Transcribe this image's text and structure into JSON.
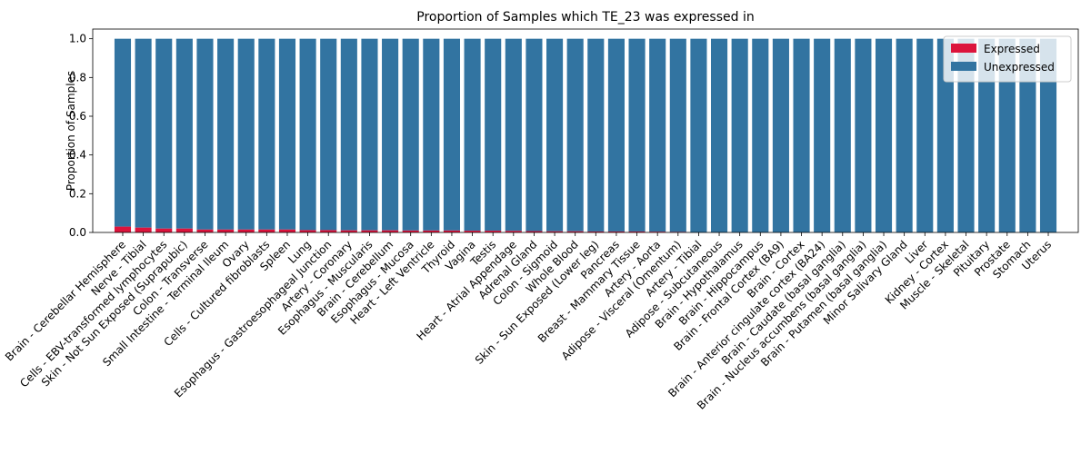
{
  "chart_data": {
    "type": "bar",
    "stacked": true,
    "title": "Proportion of Samples which TE_23 was expressed in",
    "xlabel": "",
    "ylabel": "Proportion of Samples",
    "ylim": [
      0,
      1.05
    ],
    "yticks": [
      "0.0",
      "0.2",
      "0.4",
      "0.6",
      "0.8",
      "1.0"
    ],
    "grid": false,
    "legend_position": "top-right",
    "categories": [
      "Brain - Cerebellar Hemisphere",
      "Nerve - Tibial",
      "Cells - EBV-transformed lymphocytes",
      "Skin - Not Sun Exposed (Suprapubic)",
      "Colon - Transverse",
      "Small Intestine - Terminal Ileum",
      "Ovary",
      "Cells - Cultured fibroblasts",
      "Spleen",
      "Lung",
      "Esophagus - Gastroesophageal Junction",
      "Artery - Coronary",
      "Esophagus - Muscularis",
      "Brain - Cerebellum",
      "Esophagus - Mucosa",
      "Heart - Left Ventricle",
      "Thyroid",
      "Vagina",
      "Testis",
      "Heart - Atrial Appendage",
      "Adrenal Gland",
      "Colon - Sigmoid",
      "Whole Blood",
      "Skin - Sun Exposed (Lower leg)",
      "Pancreas",
      "Breast - Mammary Tissue",
      "Artery - Aorta",
      "Adipose - Visceral (Omentum)",
      "Artery - Tibial",
      "Adipose - Subcutaneous",
      "Brain - Hypothalamus",
      "Brain - Hippocampus",
      "Brain - Frontal Cortex (BA9)",
      "Brain - Cortex",
      "Brain - Anterior cingulate cortex (BA24)",
      "Brain - Caudate (basal ganglia)",
      "Brain - Nucleus accumbens (basal ganglia)",
      "Brain - Putamen (basal ganglia)",
      "Minor Salivary Gland",
      "Liver",
      "Kidney - Cortex",
      "Muscle - Skeletal",
      "Pituitary",
      "Prostate",
      "Stomach",
      "Uterus"
    ],
    "series": [
      {
        "name": "Expressed",
        "color": "#dc143c",
        "values": [
          0.03,
          0.025,
          0.02,
          0.02,
          0.015,
          0.015,
          0.015,
          0.015,
          0.015,
          0.012,
          0.012,
          0.011,
          0.011,
          0.011,
          0.01,
          0.01,
          0.01,
          0.009,
          0.009,
          0.008,
          0.007,
          0.006,
          0.006,
          0.005,
          0.005,
          0.005,
          0.004,
          0.003,
          0,
          0,
          0,
          0,
          0,
          0,
          0,
          0,
          0,
          0,
          0,
          0,
          0,
          0,
          0,
          0,
          0,
          0
        ]
      },
      {
        "name": "Unexpressed",
        "color": "#3274a1",
        "values": [
          0.97,
          0.975,
          0.98,
          0.98,
          0.985,
          0.985,
          0.985,
          0.985,
          0.985,
          0.988,
          0.988,
          0.989,
          0.989,
          0.989,
          0.99,
          0.99,
          0.99,
          0.991,
          0.991,
          0.992,
          0.993,
          0.994,
          0.994,
          0.995,
          0.995,
          0.995,
          0.996,
          0.997,
          1,
          1,
          1,
          1,
          1,
          1,
          1,
          1,
          1,
          1,
          1,
          1,
          1,
          1,
          1,
          1,
          1,
          1
        ]
      }
    ]
  }
}
